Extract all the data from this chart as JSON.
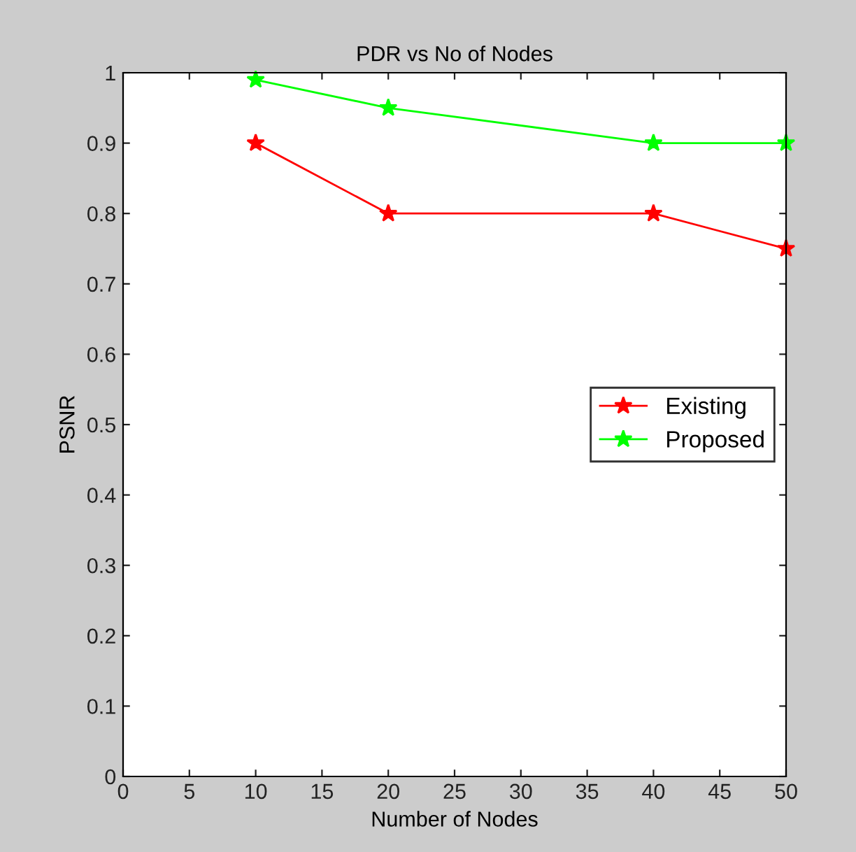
{
  "chart_data": {
    "type": "line",
    "title": "PDR vs No of Nodes",
    "xlabel": "Number of Nodes",
    "ylabel": "PSNR",
    "xlim": [
      0,
      50
    ],
    "xticks": [
      0,
      5,
      10,
      15,
      20,
      25,
      30,
      35,
      40,
      45,
      50
    ],
    "ylim": [
      0,
      1
    ],
    "yticks": [
      0,
      0.1,
      0.2,
      0.3,
      0.4,
      0.5,
      0.6,
      0.7,
      0.8,
      0.9,
      1
    ],
    "x": [
      10,
      20,
      40,
      50
    ],
    "series": [
      {
        "name": "Existing",
        "color": "#ff0000",
        "values": [
          0.9,
          0.8,
          0.8,
          0.75
        ]
      },
      {
        "name": "Proposed",
        "color": "#00ff00",
        "values": [
          0.99,
          0.95,
          0.9,
          0.9
        ]
      }
    ],
    "marker": "star",
    "line_style": "solid",
    "grid": false,
    "legend": "right"
  }
}
